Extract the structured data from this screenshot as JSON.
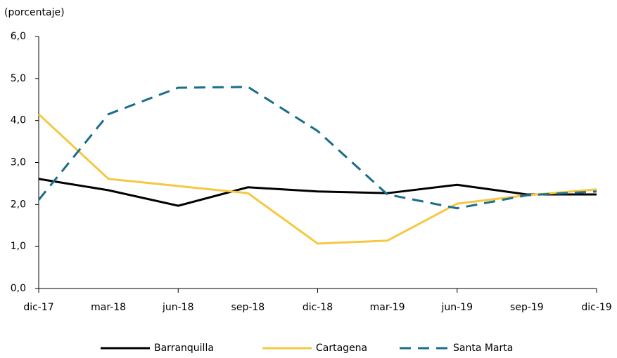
{
  "chart_data": {
    "type": "line",
    "y_axis_label": "(porcentaje)",
    "categories": [
      "dic-17",
      "mar-18",
      "jun-18",
      "sep-18",
      "dic-18",
      "mar-19",
      "jun-19",
      "sep-19",
      "dic-19"
    ],
    "series": [
      {
        "name": "Barranquilla",
        "color": "#000000",
        "dash": false,
        "values": [
          2.61,
          2.34,
          1.97,
          2.41,
          2.31,
          2.27,
          2.47,
          2.24,
          2.24
        ]
      },
      {
        "name": "Cartagena",
        "color": "#f5c842",
        "dash": false,
        "values": [
          4.15,
          2.61,
          2.44,
          2.27,
          1.07,
          1.14,
          2.02,
          2.22,
          2.36
        ]
      },
      {
        "name": "Santa Marta",
        "color": "#1b6d8c",
        "dash": true,
        "values": [
          2.11,
          4.15,
          4.78,
          4.8,
          3.75,
          2.24,
          1.91,
          2.22,
          2.31
        ]
      }
    ],
    "ylim": [
      0,
      6
    ],
    "yticks": [
      {
        "value": 0,
        "label": "0,0"
      },
      {
        "value": 1,
        "label": "1,0"
      },
      {
        "value": 2,
        "label": "2,0"
      },
      {
        "value": 3,
        "label": "3,0"
      },
      {
        "value": 4,
        "label": "4,0"
      },
      {
        "value": 5,
        "label": "5,0"
      },
      {
        "value": 6,
        "label": "6,0"
      }
    ],
    "grid": false,
    "legend": "bottom"
  }
}
